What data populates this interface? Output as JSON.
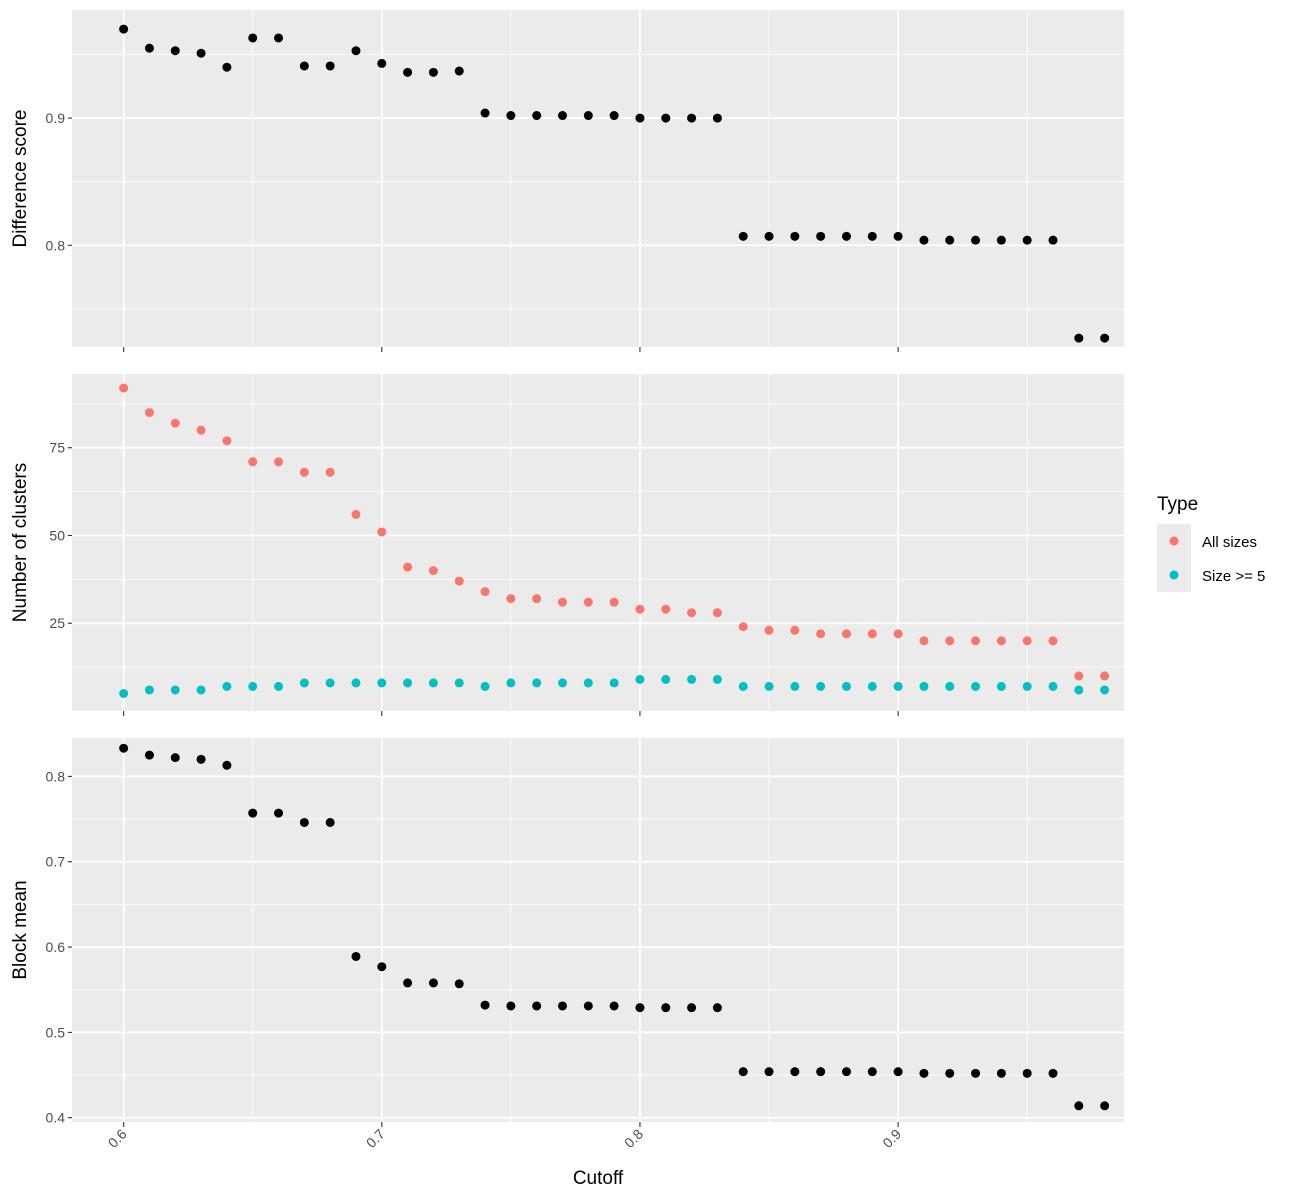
{
  "chart_data": [
    {
      "type": "scatter",
      "panel": "top",
      "title": "",
      "xlabel": "",
      "ylabel": "Difference score",
      "xlim": [
        0.58,
        0.9875
      ],
      "ylim": [
        0.72,
        0.985
      ],
      "yticks": [
        0.8,
        0.9
      ],
      "ytick_labels": [
        "0.8",
        "0.9"
      ],
      "grid": true,
      "series": [
        {
          "color": "#000000",
          "x": [
            0.6,
            0.61,
            0.62,
            0.63,
            0.64,
            0.65,
            0.66,
            0.67,
            0.68,
            0.69,
            0.7,
            0.71,
            0.72,
            0.73,
            0.74,
            0.75,
            0.76,
            0.77,
            0.78,
            0.79,
            0.8,
            0.81,
            0.82,
            0.83,
            0.84,
            0.85,
            0.86,
            0.87,
            0.88,
            0.89,
            0.9,
            0.91,
            0.92,
            0.93,
            0.94,
            0.95,
            0.96,
            0.97,
            0.98
          ],
          "y": [
            0.97,
            0.955,
            0.953,
            0.951,
            0.94,
            0.963,
            0.963,
            0.941,
            0.941,
            0.953,
            0.943,
            0.936,
            0.936,
            0.937,
            0.904,
            0.902,
            0.902,
            0.902,
            0.902,
            0.902,
            0.9,
            0.9,
            0.9,
            0.9,
            0.807,
            0.807,
            0.807,
            0.807,
            0.807,
            0.807,
            0.807,
            0.804,
            0.804,
            0.804,
            0.804,
            0.804,
            0.804,
            0.727,
            0.727
          ]
        }
      ]
    },
    {
      "type": "scatter",
      "panel": "middle",
      "title": "",
      "xlabel": "",
      "ylabel": "Number of clusters",
      "xlim": [
        0.58,
        0.9875
      ],
      "ylim": [
        0,
        96
      ],
      "yticks": [
        25,
        50,
        75
      ],
      "ytick_labels": [
        "25",
        "50",
        "75"
      ],
      "grid": true,
      "legend": {
        "title": "Type",
        "placement": "right"
      },
      "series": [
        {
          "name": "All sizes",
          "color": "#F8766D",
          "x": [
            0.6,
            0.61,
            0.62,
            0.63,
            0.64,
            0.65,
            0.66,
            0.67,
            0.68,
            0.69,
            0.7,
            0.71,
            0.72,
            0.73,
            0.74,
            0.75,
            0.76,
            0.77,
            0.78,
            0.79,
            0.8,
            0.81,
            0.82,
            0.83,
            0.84,
            0.85,
            0.86,
            0.87,
            0.88,
            0.89,
            0.9,
            0.91,
            0.92,
            0.93,
            0.94,
            0.95,
            0.96,
            0.97,
            0.98
          ],
          "y": [
            92,
            85,
            82,
            80,
            77,
            71,
            71,
            68,
            68,
            56,
            51,
            41,
            40,
            37,
            34,
            32,
            32,
            31,
            31,
            31,
            29,
            29,
            28,
            28,
            24,
            23,
            23,
            22,
            22,
            22,
            22,
            20,
            20,
            20,
            20,
            20,
            20,
            10,
            10
          ]
        },
        {
          "name": "Size >= 5",
          "color": "#00BFC4",
          "x": [
            0.6,
            0.61,
            0.62,
            0.63,
            0.64,
            0.65,
            0.66,
            0.67,
            0.68,
            0.69,
            0.7,
            0.71,
            0.72,
            0.73,
            0.74,
            0.75,
            0.76,
            0.77,
            0.78,
            0.79,
            0.8,
            0.81,
            0.82,
            0.83,
            0.84,
            0.85,
            0.86,
            0.87,
            0.88,
            0.89,
            0.9,
            0.91,
            0.92,
            0.93,
            0.94,
            0.95,
            0.96,
            0.97,
            0.98
          ],
          "y": [
            5,
            6,
            6,
            6,
            7,
            7,
            7,
            8,
            8,
            8,
            8,
            8,
            8,
            8,
            7,
            8,
            8,
            8,
            8,
            8,
            9,
            9,
            9,
            9,
            7,
            7,
            7,
            7,
            7,
            7,
            7,
            7,
            7,
            7,
            7,
            7,
            7,
            6,
            6
          ]
        }
      ]
    },
    {
      "type": "scatter",
      "panel": "bottom",
      "title": "",
      "xlabel": "Cutoff",
      "ylabel": "Block mean",
      "xlim": [
        0.58,
        0.9875
      ],
      "ylim": [
        0.395,
        0.845
      ],
      "yticks": [
        0.4,
        0.5,
        0.6,
        0.7,
        0.8
      ],
      "ytick_labels": [
        "0.4",
        "0.5",
        "0.6",
        "0.7",
        "0.8"
      ],
      "xticks": [
        0.6,
        0.7,
        0.8,
        0.9
      ],
      "xtick_labels": [
        "0.6",
        "0.7",
        "0.8",
        "0.9"
      ],
      "grid": true,
      "series": [
        {
          "color": "#000000",
          "x": [
            0.6,
            0.61,
            0.62,
            0.63,
            0.64,
            0.65,
            0.66,
            0.67,
            0.68,
            0.69,
            0.7,
            0.71,
            0.72,
            0.73,
            0.74,
            0.75,
            0.76,
            0.77,
            0.78,
            0.79,
            0.8,
            0.81,
            0.82,
            0.83,
            0.84,
            0.85,
            0.86,
            0.87,
            0.88,
            0.89,
            0.9,
            0.91,
            0.92,
            0.93,
            0.94,
            0.95,
            0.96,
            0.97,
            0.98
          ],
          "y": [
            0.833,
            0.825,
            0.822,
            0.82,
            0.813,
            0.757,
            0.757,
            0.746,
            0.746,
            0.589,
            0.577,
            0.558,
            0.558,
            0.557,
            0.532,
            0.531,
            0.531,
            0.531,
            0.531,
            0.531,
            0.529,
            0.529,
            0.529,
            0.529,
            0.454,
            0.454,
            0.454,
            0.454,
            0.454,
            0.454,
            0.454,
            0.452,
            0.452,
            0.452,
            0.452,
            0.452,
            0.452,
            0.414,
            0.414
          ]
        }
      ]
    }
  ]
}
